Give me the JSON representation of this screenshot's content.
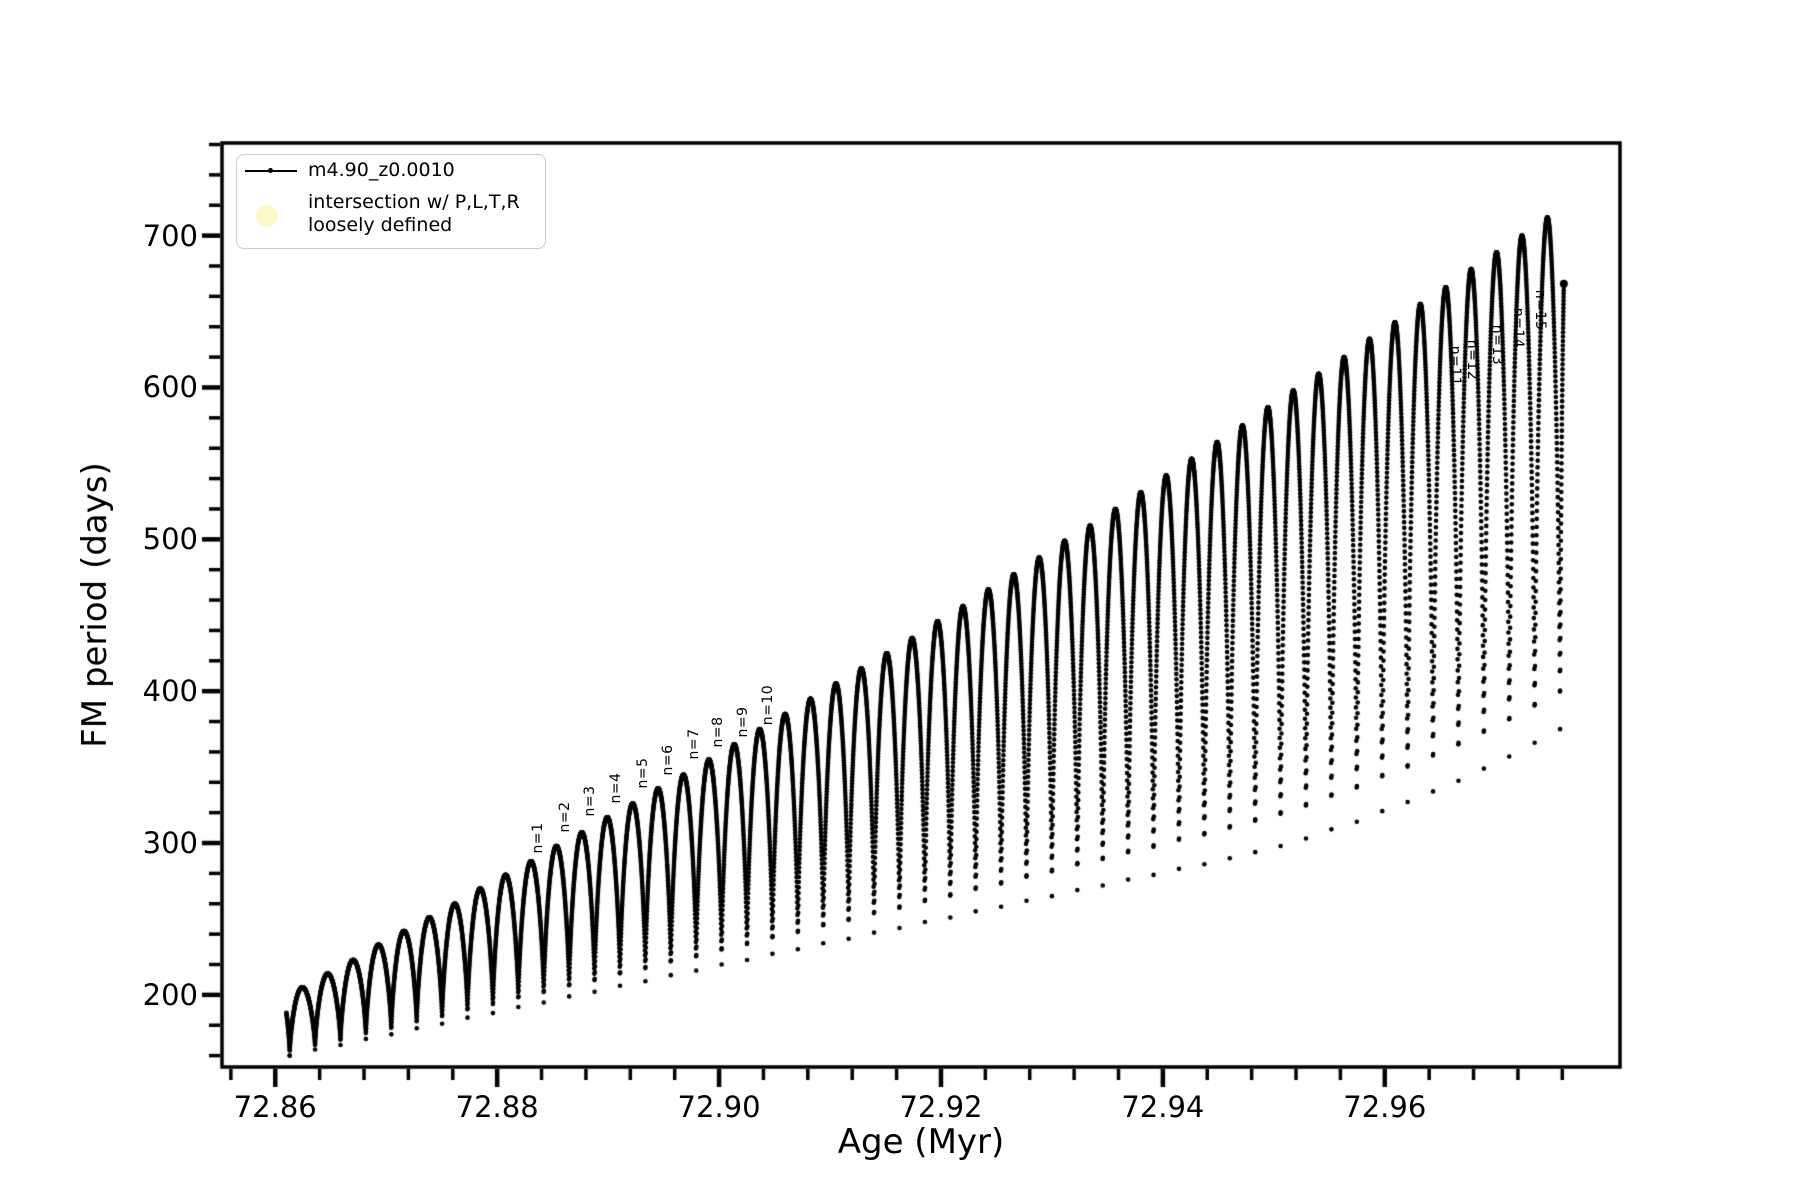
{
  "figure": {
    "background": "#ffffff"
  },
  "axes": {
    "xlabel": "Age (Myr)",
    "ylabel": "FM period (days)"
  },
  "legend": {
    "series_label": "m4.90_z0.0010",
    "intersection_label_line1": "intersection w/ P,L,T,R",
    "intersection_label_line2": "loosely defined",
    "series_line_color": "#000000",
    "intersection_marker_color": "#fafac8"
  },
  "colors": {
    "curve": "#000000",
    "text": "#000000",
    "spine": "#000000",
    "legend_border": "#cccccc",
    "intersection_marker": "#fafac8"
  },
  "chart_data": {
    "type": "line",
    "title": "",
    "xlabel": "Age (Myr)",
    "ylabel": "FM period (days)",
    "xlim": [
      72.8552,
      72.9812
    ],
    "ylim": [
      152.5,
      761.0
    ],
    "grid": false,
    "legend_position": "upper left",
    "x_major_ticks": [
      72.86,
      72.88,
      72.9,
      72.92,
      72.94,
      72.96
    ],
    "x_tick_labels": [
      "72.86",
      "72.88",
      "72.90",
      "72.92",
      "72.94",
      "72.96"
    ],
    "x_minor_tick_step": 0.004,
    "y_major_ticks": [
      200,
      300,
      400,
      500,
      600,
      700
    ],
    "y_tick_labels": [
      "200",
      "300",
      "400",
      "500",
      "600",
      "700"
    ],
    "y_minor_tick_step": 20,
    "series": [
      {
        "name": "m4.90_z0.0010",
        "marker": "point",
        "color": "#000000",
        "description": "oscillating FM period: broad rounded maxima separated by deep narrow minima sampled as sparse dots"
      }
    ],
    "oscillation_cycles": {
      "count": 50,
      "age_start": 72.8613,
      "cycle_width_myr": 0.00229,
      "samples_per_cycle": 210,
      "shape_exponent": 0.62,
      "peak_ages": [
        72.86245,
        72.86474,
        72.86703,
        72.86932,
        72.87161,
        72.8739,
        72.87619,
        72.87848,
        72.88077,
        72.88306,
        72.88535,
        72.88764,
        72.88993,
        72.89222,
        72.89451,
        72.8968,
        72.89909,
        72.90138,
        72.90367,
        72.90596,
        72.90825,
        72.91054,
        72.91283,
        72.91512,
        72.91741,
        72.9197,
        72.92199,
        72.92428,
        72.92657,
        72.92886,
        72.93115,
        72.93344,
        72.93573,
        72.93802,
        72.94031,
        72.9426,
        72.94489,
        72.94718,
        72.94947,
        72.95176,
        72.95405,
        72.95634,
        72.95863,
        72.96092,
        72.96321,
        72.9655,
        72.96779,
        72.97008,
        72.97237,
        72.97466
      ],
      "peak_periods": [
        205,
        214,
        223,
        233,
        242,
        251,
        260,
        270,
        279,
        288,
        298,
        307,
        317,
        326,
        336,
        345,
        355,
        365,
        375,
        385,
        395,
        405,
        415,
        425,
        435,
        446,
        456,
        467,
        477,
        488,
        499,
        509,
        520,
        531,
        542,
        553,
        564,
        575,
        587,
        598,
        609,
        620,
        632,
        643,
        655,
        666,
        678,
        689,
        700,
        712
      ],
      "cycle_min_periods": [
        160,
        164,
        167,
        171,
        174,
        178,
        181,
        185,
        188,
        192,
        195,
        199,
        202,
        206,
        209,
        213,
        216,
        220,
        223,
        227,
        230,
        234,
        237,
        241,
        244,
        248,
        251,
        255,
        258,
        262,
        265,
        269,
        272,
        276,
        279,
        283,
        286,
        290,
        294,
        298,
        303,
        309,
        314,
        321,
        327,
        334,
        341,
        349,
        357,
        366,
        375
      ],
      "lead_in": {
        "start_age": 72.861,
        "start_period": 188,
        "end_period": 160
      },
      "tail_out": {
        "end_age": 72.9761,
        "start_period": 375,
        "end_period": 667
      }
    },
    "annotations": [
      {
        "text": "n=1",
        "age": 72.8837,
        "period": 303,
        "rotation": "up"
      },
      {
        "text": "n=2",
        "age": 72.8861,
        "period": 317,
        "rotation": "up"
      },
      {
        "text": "n=3",
        "age": 72.8884,
        "period": 328,
        "rotation": "up"
      },
      {
        "text": "n=4",
        "age": 72.8907,
        "period": 336,
        "rotation": "up"
      },
      {
        "text": "n=5",
        "age": 72.8931,
        "period": 346,
        "rotation": "up"
      },
      {
        "text": "n=6",
        "age": 72.8954,
        "period": 355,
        "rotation": "up"
      },
      {
        "text": "n=7",
        "age": 72.8977,
        "period": 365,
        "rotation": "up"
      },
      {
        "text": "n=8",
        "age": 72.8999,
        "period": 373,
        "rotation": "up"
      },
      {
        "text": "n=9",
        "age": 72.9022,
        "period": 380,
        "rotation": "up"
      },
      {
        "text": "n=10",
        "age": 72.9044,
        "period": 391,
        "rotation": "up"
      },
      {
        "text": "n=11",
        "age": 72.9663,
        "period": 614,
        "rotation": "down"
      },
      {
        "text": "n=12",
        "age": 72.9679,
        "period": 618,
        "rotation": "down"
      },
      {
        "text": "n=13",
        "age": 72.9701,
        "period": 628,
        "rotation": "down"
      },
      {
        "text": "n=14",
        "age": 72.972,
        "period": 639,
        "rotation": "down"
      },
      {
        "text": "n=15",
        "age": 72.974,
        "period": 651,
        "rotation": "down"
      }
    ]
  }
}
